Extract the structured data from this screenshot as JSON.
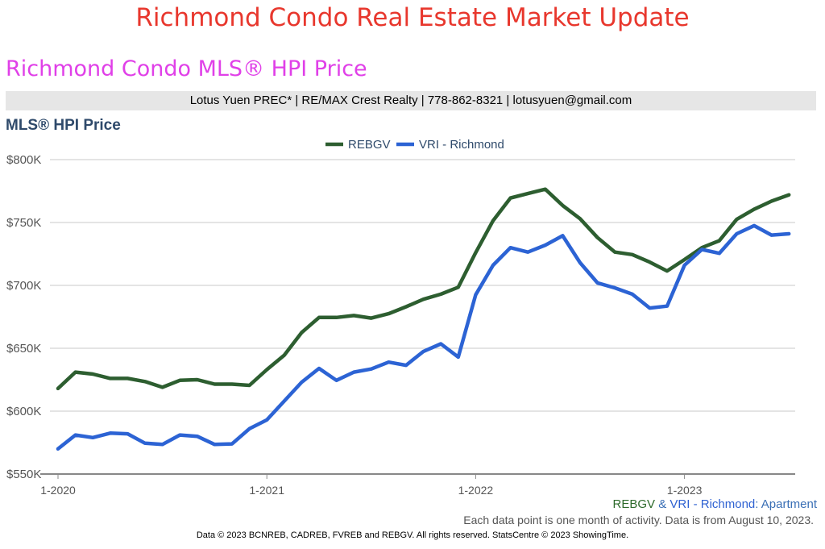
{
  "page_title": "Richmond Condo Real Estate Market Update",
  "section_title": "Richmond Condo MLS® HPI Price",
  "contact_bar": "Lotus Yuen PREC* | RE/MAX Crest Realty | 778-862-8321 | lotusyuen@gmail.com",
  "chart_heading": "MLS® HPI Price",
  "footer": {
    "legend_rebgv": "REBGV",
    "legend_amp": " & ",
    "legend_vri": "VRI - Richmond",
    "legend_type": ": Apartment",
    "note": "Each data point is one month of activity. Data is from August 10, 2023.",
    "copyright": "Data © 2023 BCNREB, CADREB, FVREB and REBGV. All rights reserved. StatsCentre © 2023 ShowingTime."
  },
  "colors": {
    "rebgv": "#2d5e30",
    "vri": "#2c63d4",
    "grid": "#c8c8c8",
    "axis": "#888888",
    "tick_text": "#555555"
  },
  "chart_data": {
    "type": "line",
    "title": "MLS® HPI Price",
    "x": [
      "2020-01",
      "2020-02",
      "2020-03",
      "2020-04",
      "2020-05",
      "2020-06",
      "2020-07",
      "2020-08",
      "2020-09",
      "2020-10",
      "2020-11",
      "2020-12",
      "2021-01",
      "2021-02",
      "2021-03",
      "2021-04",
      "2021-05",
      "2021-06",
      "2021-07",
      "2021-08",
      "2021-09",
      "2021-10",
      "2021-11",
      "2021-12",
      "2022-01",
      "2022-02",
      "2022-03",
      "2022-04",
      "2022-05",
      "2022-06",
      "2022-07",
      "2022-08",
      "2022-09",
      "2022-10",
      "2022-11",
      "2022-12",
      "2023-01",
      "2023-02",
      "2023-03",
      "2023-04",
      "2023-05",
      "2023-06",
      "2023-07"
    ],
    "x_tick_labels": [
      {
        "x": "2020-01",
        "label": "1-2020"
      },
      {
        "x": "2021-01",
        "label": "1-2021"
      },
      {
        "x": "2022-01",
        "label": "1-2022"
      },
      {
        "x": "2023-01",
        "label": "1-2023"
      }
    ],
    "y_ticks": [
      {
        "value": 550000,
        "label": "$550K"
      },
      {
        "value": 600000,
        "label": "$600K"
      },
      {
        "value": 650000,
        "label": "$650K"
      },
      {
        "value": 700000,
        "label": "$700K"
      },
      {
        "value": 750000,
        "label": "$750K"
      },
      {
        "value": 800000,
        "label": "$800K"
      }
    ],
    "ylim": [
      550000,
      800000
    ],
    "grid": true,
    "legend_position": "top-center",
    "series": [
      {
        "name": "REBGV",
        "color": "#2d5e30",
        "values": [
          618000,
          631000,
          629500,
          626000,
          626000,
          623500,
          619000,
          624500,
          625000,
          621500,
          621500,
          620500,
          633000,
          644500,
          662500,
          674500,
          674500,
          676000,
          674000,
          677500,
          683000,
          689000,
          693000,
          698500,
          726000,
          751500,
          769500,
          773000,
          776500,
          763500,
          753000,
          738000,
          726500,
          724500,
          718500,
          711500,
          720500,
          730000,
          735500,
          752500,
          760500,
          767000,
          772000
        ]
      },
      {
        "name": "VRI - Richmond",
        "color": "#2c63d4",
        "values": [
          570000,
          581000,
          579000,
          582500,
          582000,
          574500,
          573500,
          581000,
          580000,
          573500,
          574000,
          586000,
          593000,
          608000,
          623000,
          634000,
          624500,
          631000,
          633500,
          639000,
          636500,
          647500,
          653500,
          643000,
          692500,
          716000,
          730000,
          726500,
          732000,
          739500,
          718000,
          702000,
          698000,
          693000,
          682000,
          683500,
          716000,
          728500,
          725500,
          741000,
          747500,
          740000,
          741000
        ]
      }
    ]
  }
}
